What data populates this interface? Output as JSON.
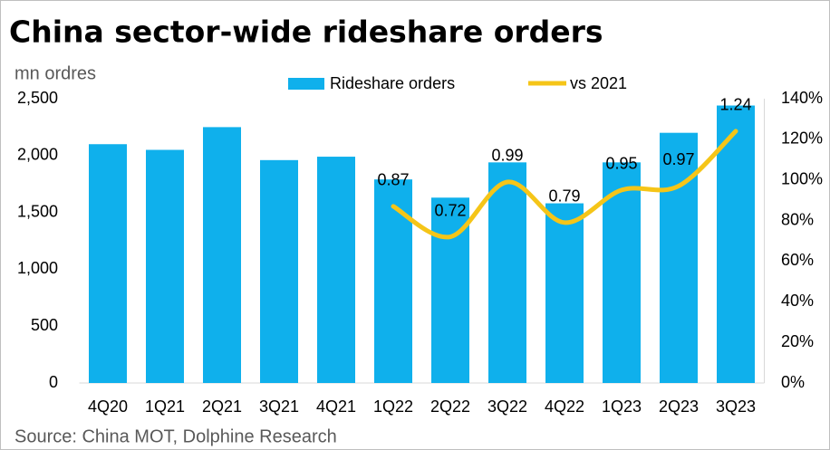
{
  "chart_data": {
    "type": "bar_line",
    "title": "China sector-wide rideshare orders",
    "y_label": "mn ordres",
    "source": "Source:  China MOT, Dolphine Research",
    "categories": [
      "4Q20",
      "1Q21",
      "2Q21",
      "3Q21",
      "4Q21",
      "1Q22",
      "2Q22",
      "3Q22",
      "4Q22",
      "1Q23",
      "2Q23",
      "3Q23"
    ],
    "series": [
      {
        "name": "Rideshare orders",
        "type": "bar",
        "color": "#0fb0ec",
        "values": [
          2100,
          2050,
          2250,
          1960,
          1990,
          1790,
          1630,
          1940,
          1580,
          1940,
          2200,
          2440
        ]
      },
      {
        "name": "vs 2021",
        "type": "line",
        "axis": "y2",
        "color": "#f5c518",
        "values": [
          null,
          null,
          null,
          null,
          null,
          87,
          72,
          99,
          79,
          95,
          97,
          124
        ],
        "value_labels": [
          null,
          null,
          null,
          null,
          null,
          "0.87",
          "0.72",
          "0.99",
          "0.79",
          "0.95",
          "0.97",
          "1.24"
        ]
      }
    ],
    "ylim": [
      0,
      2500
    ],
    "yticks": [
      0,
      500,
      {
        "value": 1000,
        "label": "1,000"
      },
      {
        "value": 1500,
        "label": "1,500"
      },
      {
        "value": 2000,
        "label": "2,000"
      },
      {
        "value": 2500,
        "label": "2,500"
      }
    ],
    "y2lim": [
      0,
      140
    ],
    "y2ticks": [
      {
        "value": 0,
        "label": "0%"
      },
      {
        "value": 20,
        "label": "20%"
      },
      {
        "value": 40,
        "label": "40%"
      },
      {
        "value": 60,
        "label": "60%"
      },
      {
        "value": 80,
        "label": "80%"
      },
      {
        "value": 100,
        "label": "100%"
      },
      {
        "value": 120,
        "label": "120%"
      },
      {
        "value": 140,
        "label": "140%"
      }
    ],
    "legend": "top"
  }
}
